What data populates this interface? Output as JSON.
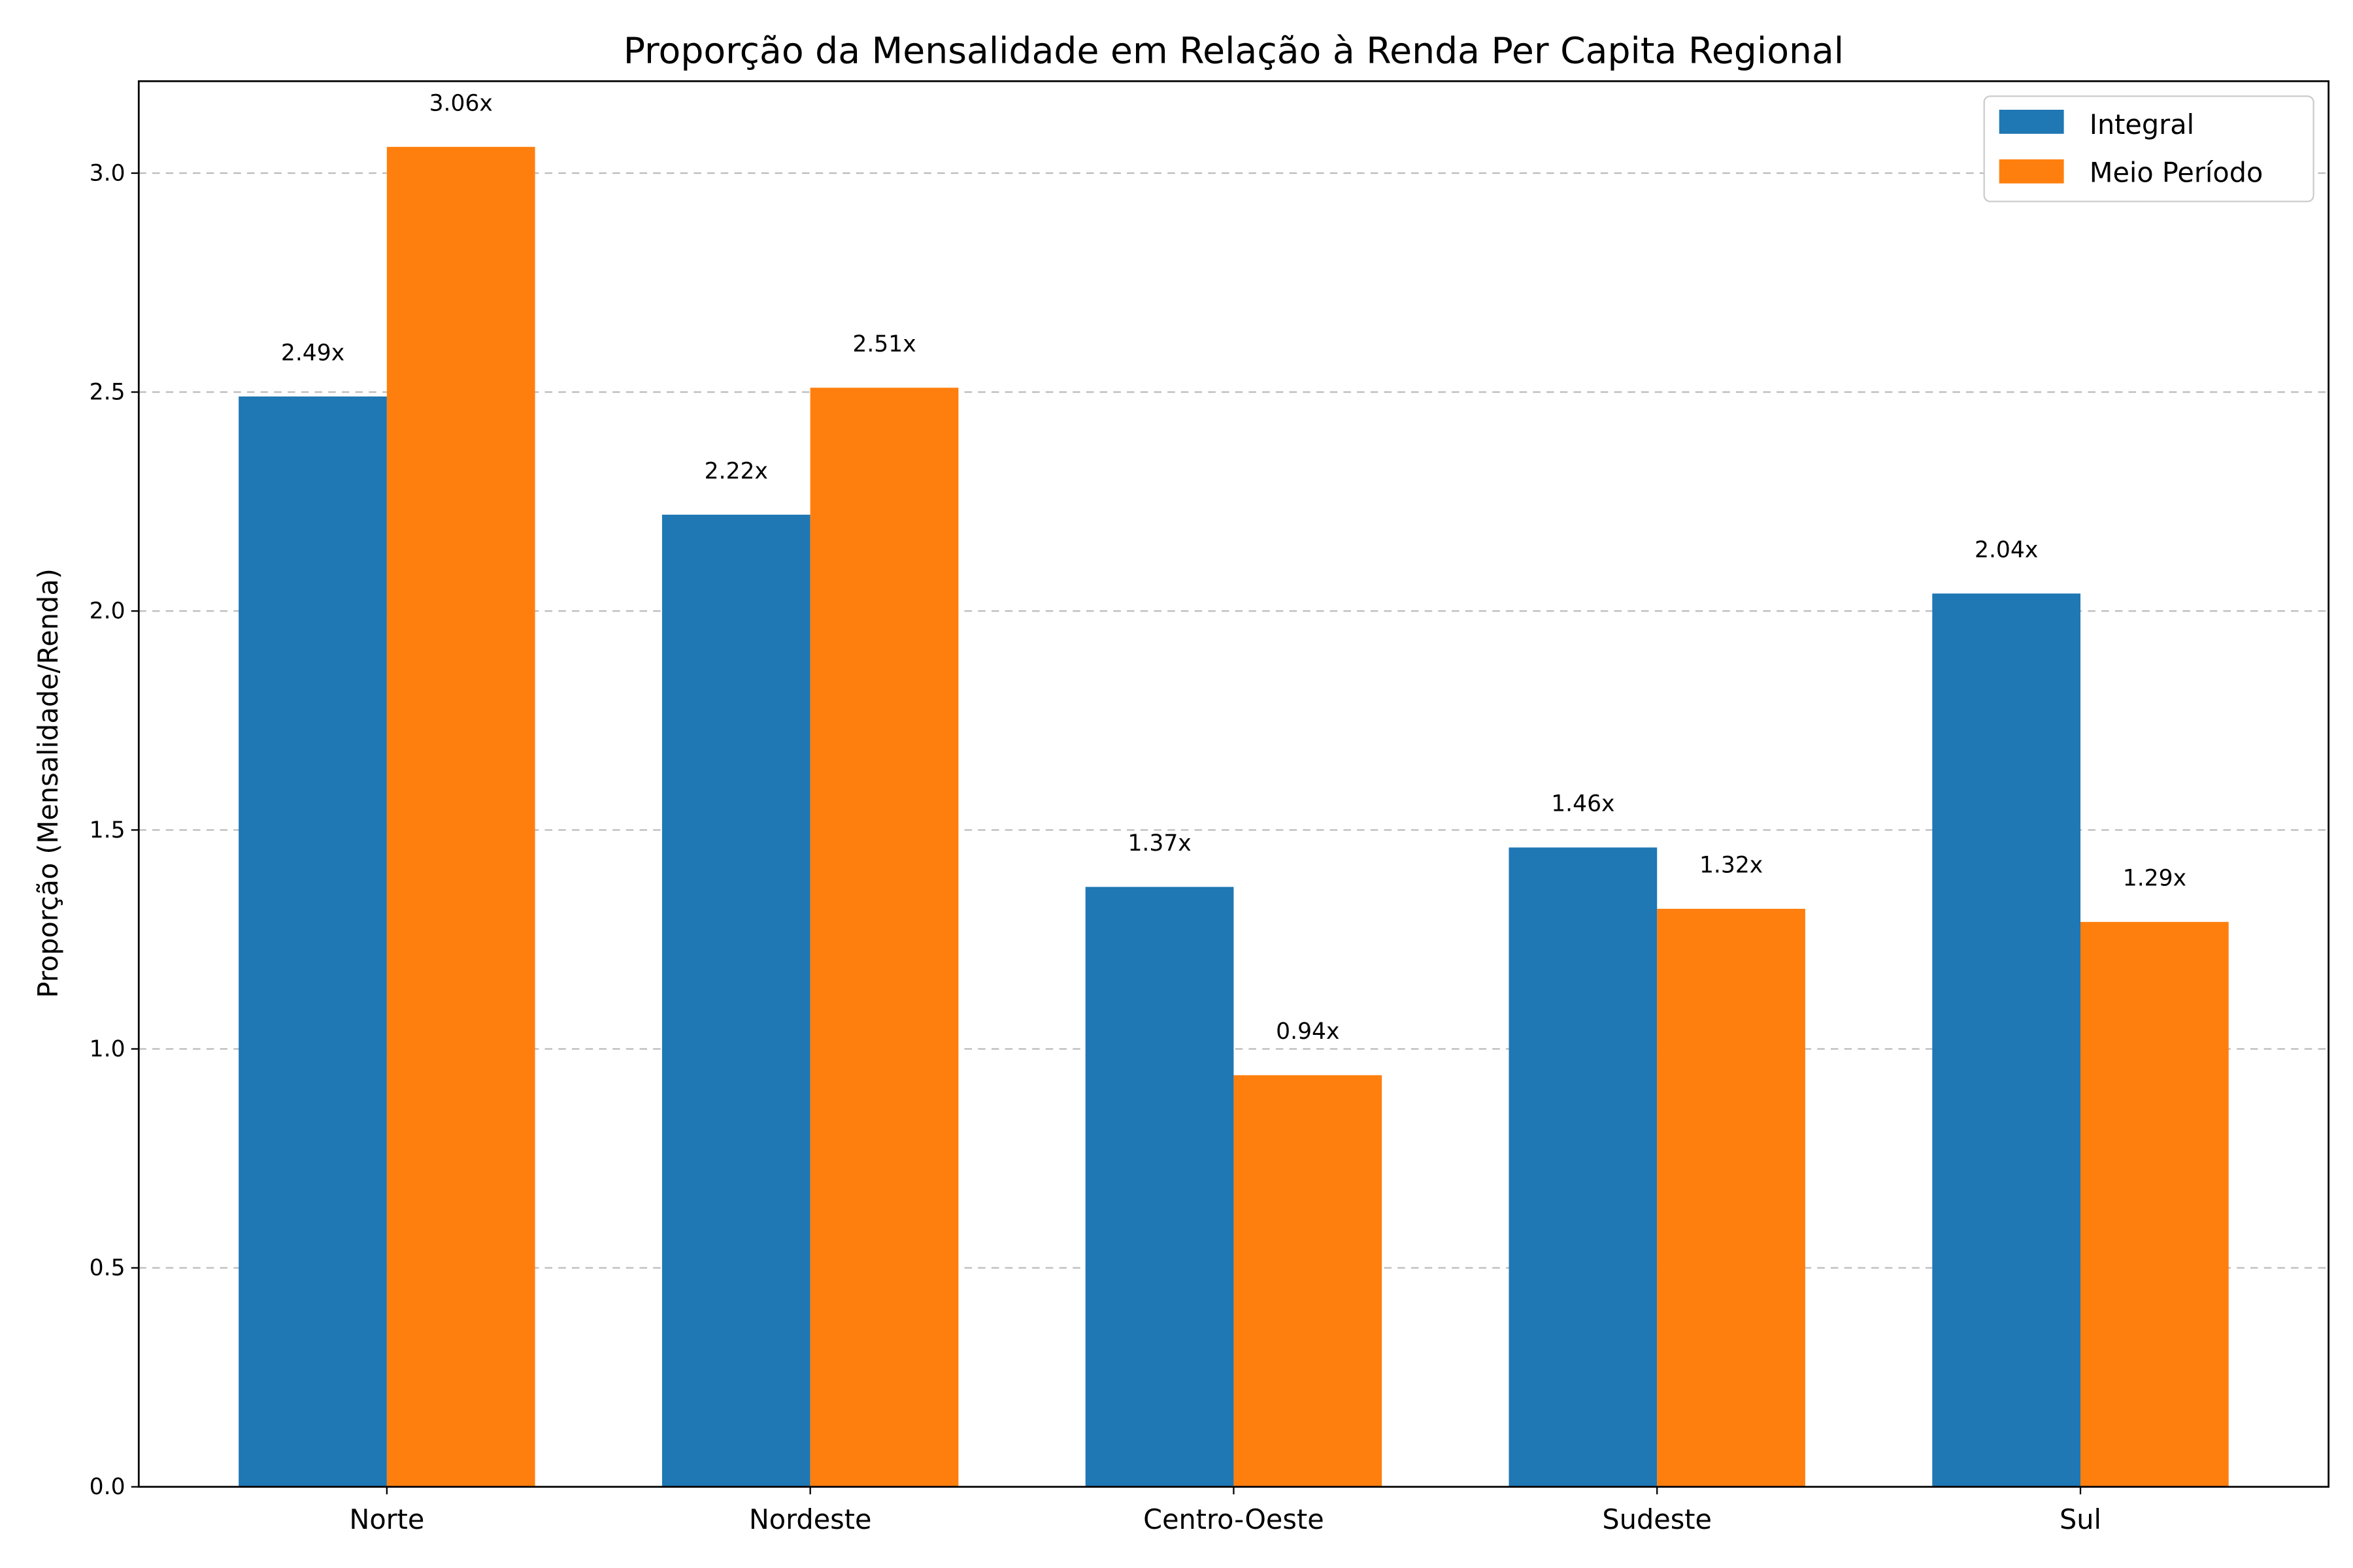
{
  "chart_data": {
    "type": "bar",
    "title": "Proporção da Mensalidade em Relação à Renda Per Capita Regional",
    "xlabel": "",
    "ylabel": "Proporção (Mensalidade/Renda)",
    "categories": [
      "Norte",
      "Nordeste",
      "Centro-Oeste",
      "Sudeste",
      "Sul"
    ],
    "series": [
      {
        "name": "Integral",
        "color": "#1f77b4",
        "values": [
          2.49,
          2.22,
          1.37,
          1.46,
          2.04
        ],
        "labels": [
          "2.49x",
          "2.22x",
          "1.37x",
          "1.46x",
          "2.04x"
        ]
      },
      {
        "name": "Meio Período",
        "color": "#ff7f0e",
        "values": [
          3.06,
          2.51,
          0.94,
          1.32,
          1.29
        ],
        "labels": [
          "3.06x",
          "2.51x",
          "0.94x",
          "1.32x",
          "1.29x"
        ]
      }
    ],
    "ylim": [
      0,
      3.21
    ],
    "yticks": [
      "0.0",
      "0.5",
      "1.0",
      "1.5",
      "2.0",
      "2.5",
      "3.0"
    ],
    "grid": "y dashed",
    "legend_position": "top-right"
  }
}
